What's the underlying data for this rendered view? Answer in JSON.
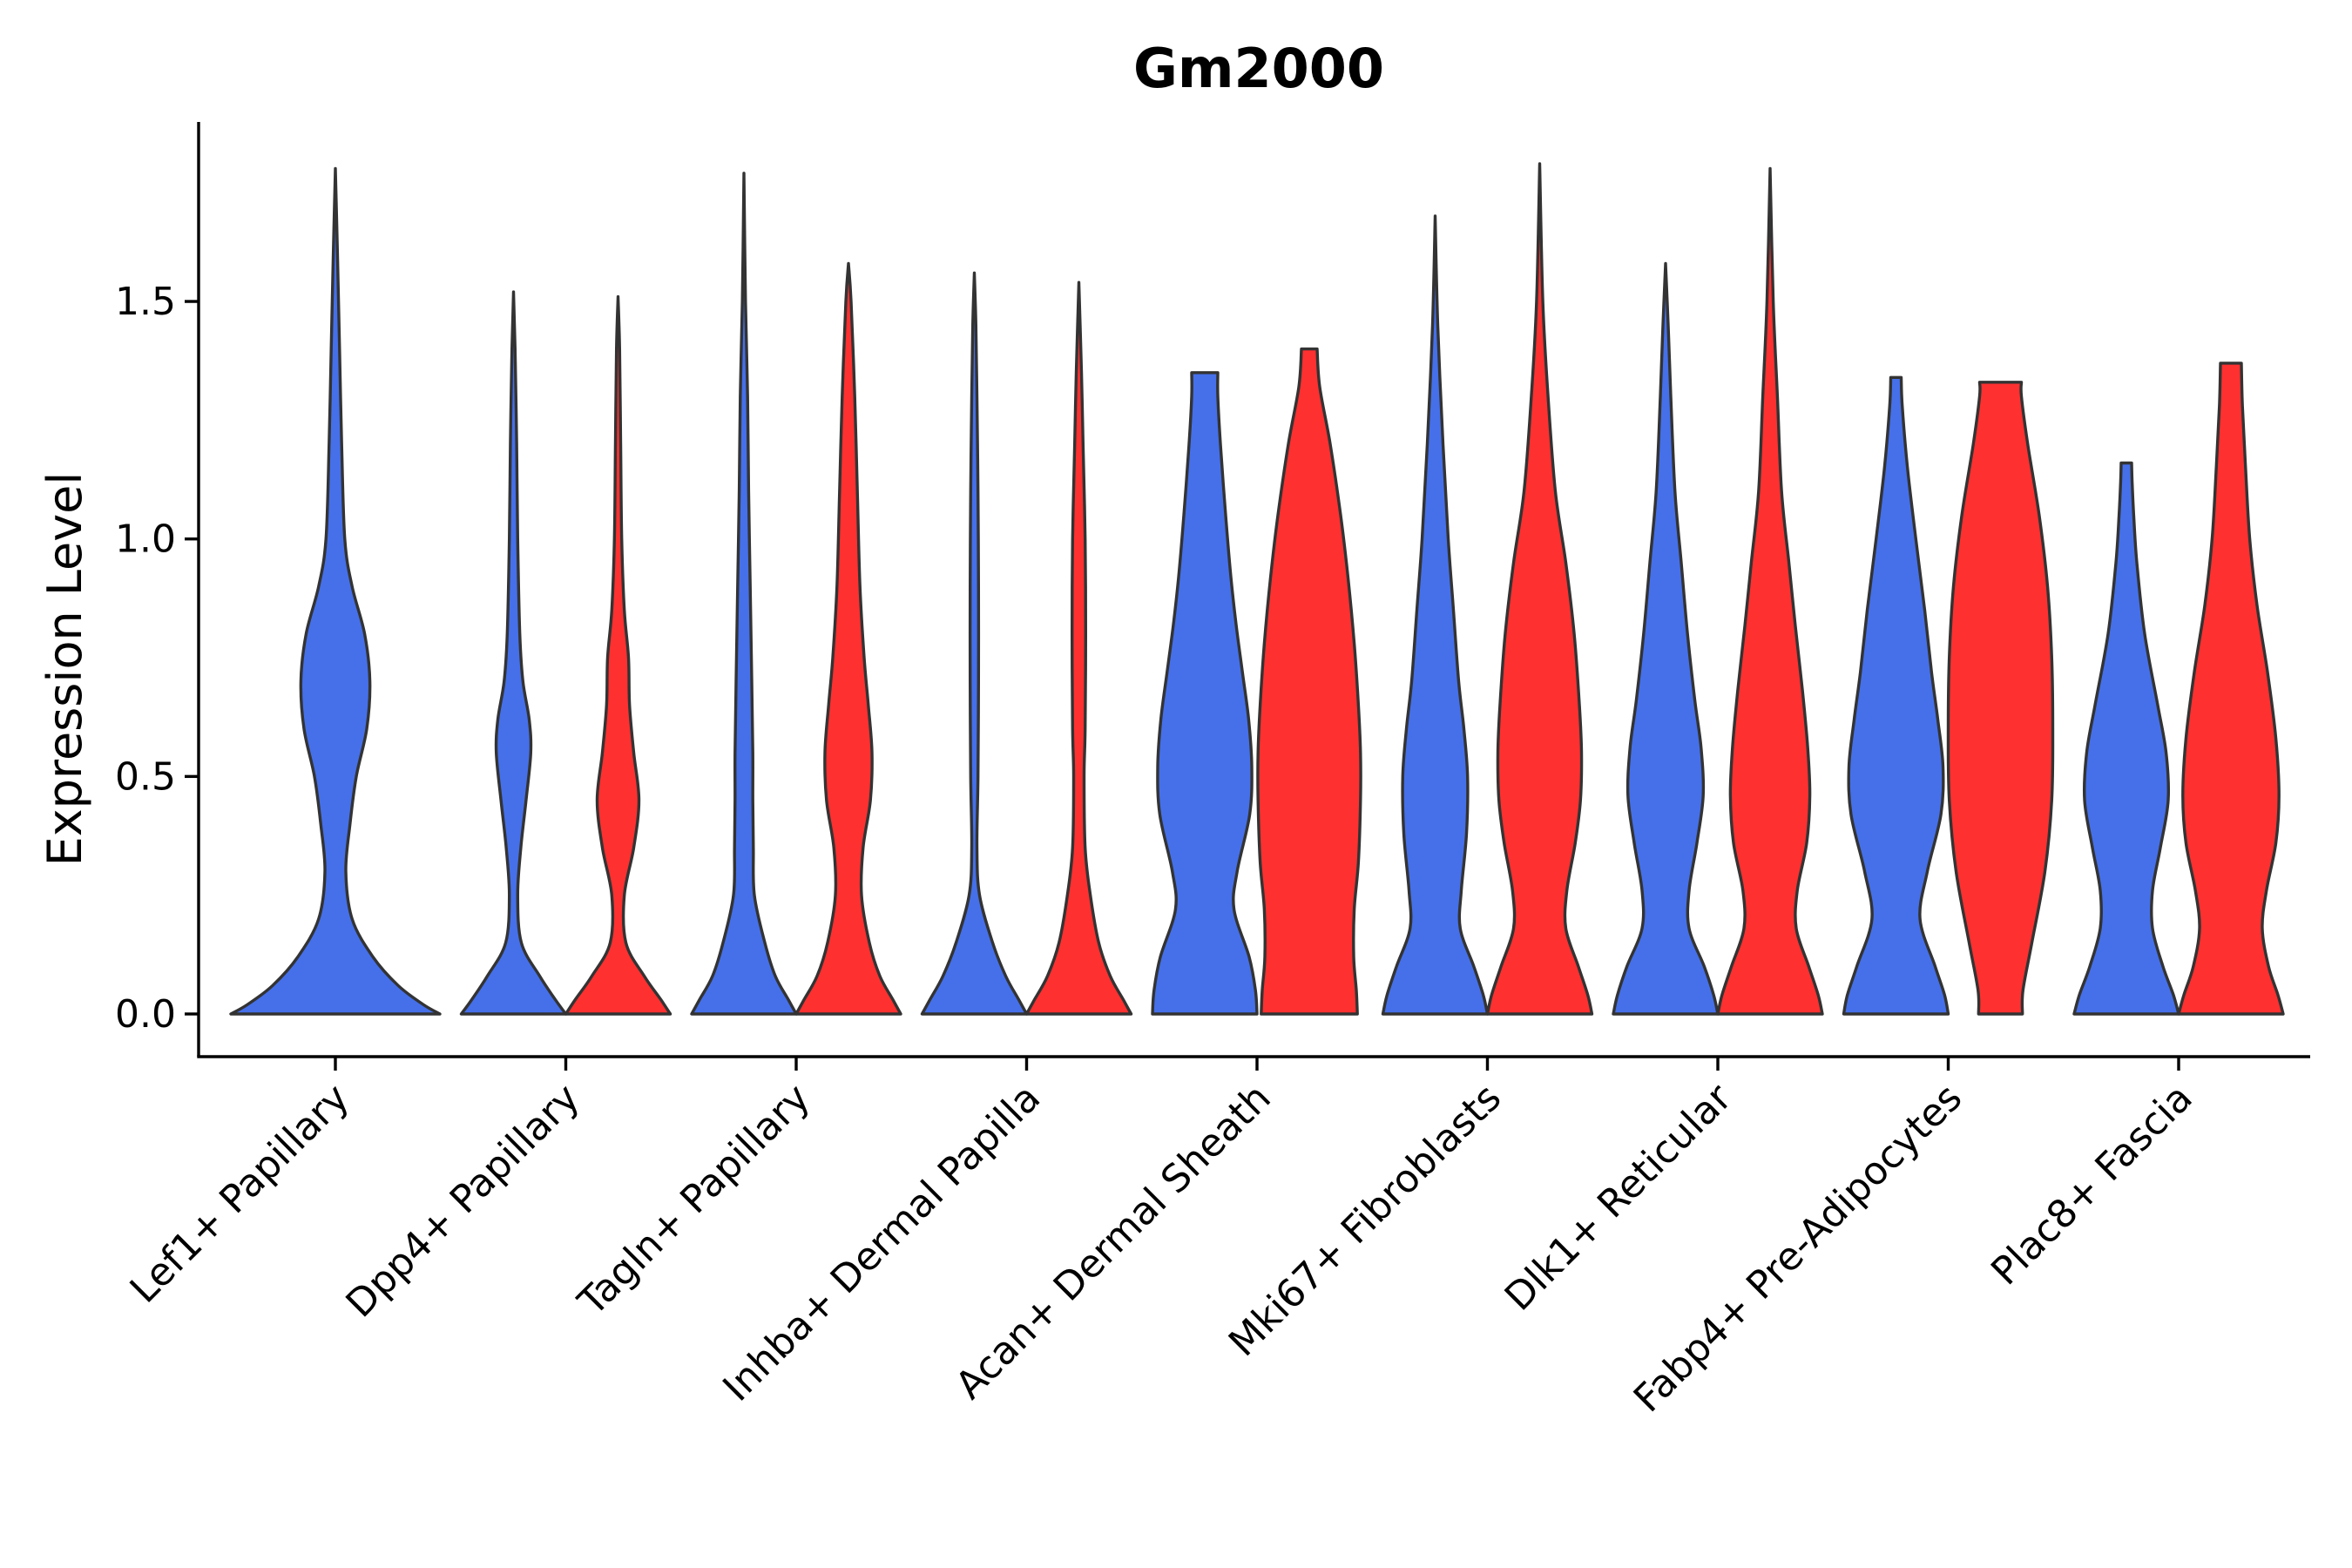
{
  "chart_data": {
    "type": "violin",
    "title": "Gm2000",
    "xlabel": "",
    "ylabel": "Expression Level",
    "ylim": [
      -0.09,
      1.88
    ],
    "yticks": [
      0.0,
      0.5,
      1.0,
      1.5
    ],
    "ytick_labels": [
      "0.0",
      "0.5",
      "1.0",
      "1.5"
    ],
    "split_colors": [
      "#4570ea",
      "#ff3030"
    ],
    "categories": [
      "Lef1+ Papillary",
      "Dpp4+ Papillary",
      "Tagln+ Papillary",
      "Inhba+ Dermal Papilla",
      "Acan+ Dermal Sheath",
      "Mki67+ Fibroblasts",
      "Dlk1+ Reticular",
      "Fabp4+ Pre-Adipocytes",
      "Plac8+ Fascia"
    ],
    "violins": [
      {
        "category": "Lef1+ Papillary",
        "group": "blue",
        "max": 1.78,
        "profile": [
          [
            0.0,
            1.0
          ],
          [
            0.02,
            0.84
          ],
          [
            0.06,
            0.6
          ],
          [
            0.12,
            0.36
          ],
          [
            0.2,
            0.16
          ],
          [
            0.3,
            0.1
          ],
          [
            0.4,
            0.14
          ],
          [
            0.5,
            0.2
          ],
          [
            0.6,
            0.3
          ],
          [
            0.7,
            0.33
          ],
          [
            0.8,
            0.28
          ],
          [
            0.9,
            0.16
          ],
          [
            1.0,
            0.09
          ],
          [
            1.2,
            0.06
          ],
          [
            1.4,
            0.04
          ],
          [
            1.6,
            0.02
          ],
          [
            1.78,
            0.0
          ]
        ]
      },
      {
        "category": "Dpp4+ Papillary",
        "group": "blue",
        "max": 1.52,
        "profile": [
          [
            0.0,
            1.0
          ],
          [
            0.03,
            0.8
          ],
          [
            0.08,
            0.5
          ],
          [
            0.15,
            0.15
          ],
          [
            0.25,
            0.08
          ],
          [
            0.35,
            0.14
          ],
          [
            0.45,
            0.24
          ],
          [
            0.55,
            0.33
          ],
          [
            0.62,
            0.3
          ],
          [
            0.7,
            0.18
          ],
          [
            0.8,
            0.12
          ],
          [
            1.0,
            0.08
          ],
          [
            1.2,
            0.06
          ],
          [
            1.4,
            0.03
          ],
          [
            1.52,
            0.0
          ]
        ]
      },
      {
        "category": "Dpp4+ Papillary",
        "group": "red",
        "max": 1.51,
        "profile": [
          [
            0.0,
            1.0
          ],
          [
            0.03,
            0.82
          ],
          [
            0.08,
            0.5
          ],
          [
            0.15,
            0.15
          ],
          [
            0.25,
            0.12
          ],
          [
            0.35,
            0.3
          ],
          [
            0.45,
            0.4
          ],
          [
            0.55,
            0.3
          ],
          [
            0.65,
            0.22
          ],
          [
            0.75,
            0.2
          ],
          [
            0.85,
            0.12
          ],
          [
            1.0,
            0.07
          ],
          [
            1.2,
            0.05
          ],
          [
            1.4,
            0.03
          ],
          [
            1.51,
            0.0
          ]
        ]
      },
      {
        "category": "Tagln+ Papillary",
        "group": "blue",
        "max": 1.77,
        "profile": [
          [
            0.0,
            1.0
          ],
          [
            0.03,
            0.85
          ],
          [
            0.08,
            0.6
          ],
          [
            0.15,
            0.4
          ],
          [
            0.25,
            0.2
          ],
          [
            0.35,
            0.18
          ],
          [
            0.45,
            0.17
          ],
          [
            0.55,
            0.17
          ],
          [
            0.7,
            0.15
          ],
          [
            0.9,
            0.12
          ],
          [
            1.1,
            0.09
          ],
          [
            1.3,
            0.07
          ],
          [
            1.5,
            0.03
          ],
          [
            1.77,
            0.0
          ]
        ]
      },
      {
        "category": "Tagln+ Papillary",
        "group": "red",
        "max": 1.58,
        "profile": [
          [
            0.0,
            1.0
          ],
          [
            0.03,
            0.85
          ],
          [
            0.08,
            0.6
          ],
          [
            0.15,
            0.4
          ],
          [
            0.25,
            0.25
          ],
          [
            0.35,
            0.28
          ],
          [
            0.45,
            0.42
          ],
          [
            0.55,
            0.45
          ],
          [
            0.65,
            0.38
          ],
          [
            0.75,
            0.3
          ],
          [
            0.9,
            0.22
          ],
          [
            1.1,
            0.17
          ],
          [
            1.3,
            0.12
          ],
          [
            1.5,
            0.05
          ],
          [
            1.58,
            0.0
          ]
        ]
      },
      {
        "category": "Inhba+ Dermal Papilla",
        "group": "blue",
        "max": 1.56,
        "profile": [
          [
            0.0,
            1.0
          ],
          [
            0.03,
            0.85
          ],
          [
            0.08,
            0.6
          ],
          [
            0.15,
            0.35
          ],
          [
            0.25,
            0.1
          ],
          [
            0.35,
            0.05
          ],
          [
            0.5,
            0.07
          ],
          [
            0.7,
            0.08
          ],
          [
            0.9,
            0.08
          ],
          [
            1.1,
            0.07
          ],
          [
            1.3,
            0.05
          ],
          [
            1.45,
            0.03
          ],
          [
            1.56,
            0.0
          ]
        ]
      },
      {
        "category": "Inhba+ Dermal Papilla",
        "group": "red",
        "max": 1.54,
        "profile": [
          [
            0.0,
            1.0
          ],
          [
            0.03,
            0.85
          ],
          [
            0.08,
            0.6
          ],
          [
            0.15,
            0.38
          ],
          [
            0.25,
            0.22
          ],
          [
            0.35,
            0.12
          ],
          [
            0.5,
            0.1
          ],
          [
            0.6,
            0.12
          ],
          [
            0.8,
            0.13
          ],
          [
            1.0,
            0.12
          ],
          [
            1.2,
            0.08
          ],
          [
            1.35,
            0.05
          ],
          [
            1.54,
            0.0
          ]
        ]
      },
      {
        "category": "Acan+ Dermal Sheath",
        "group": "blue",
        "max": 1.35,
        "profile": [
          [
            0.0,
            1.0
          ],
          [
            0.05,
            0.97
          ],
          [
            0.12,
            0.85
          ],
          [
            0.22,
            0.56
          ],
          [
            0.3,
            0.62
          ],
          [
            0.42,
            0.86
          ],
          [
            0.52,
            0.9
          ],
          [
            0.62,
            0.84
          ],
          [
            0.72,
            0.72
          ],
          [
            0.82,
            0.6
          ],
          [
            0.92,
            0.5
          ],
          [
            1.05,
            0.4
          ],
          [
            1.2,
            0.3
          ],
          [
            1.3,
            0.25
          ],
          [
            1.35,
            0.25
          ]
        ]
      },
      {
        "category": "Acan+ Dermal Sheath",
        "group": "red",
        "max": 1.4,
        "profile": [
          [
            0.0,
            0.92
          ],
          [
            0.05,
            0.9
          ],
          [
            0.12,
            0.85
          ],
          [
            0.22,
            0.86
          ],
          [
            0.32,
            0.94
          ],
          [
            0.45,
            0.98
          ],
          [
            0.55,
            0.98
          ],
          [
            0.65,
            0.94
          ],
          [
            0.78,
            0.86
          ],
          [
            0.92,
            0.74
          ],
          [
            1.05,
            0.6
          ],
          [
            1.2,
            0.4
          ],
          [
            1.32,
            0.2
          ],
          [
            1.4,
            0.15
          ]
        ]
      },
      {
        "category": "Mki67+ Fibroblasts",
        "group": "blue",
        "max": 1.68,
        "profile": [
          [
            0.0,
            1.0
          ],
          [
            0.04,
            0.92
          ],
          [
            0.1,
            0.74
          ],
          [
            0.18,
            0.48
          ],
          [
            0.26,
            0.5
          ],
          [
            0.38,
            0.6
          ],
          [
            0.5,
            0.62
          ],
          [
            0.6,
            0.55
          ],
          [
            0.7,
            0.45
          ],
          [
            0.85,
            0.35
          ],
          [
            1.0,
            0.25
          ],
          [
            1.2,
            0.15
          ],
          [
            1.45,
            0.05
          ],
          [
            1.68,
            0.0
          ]
        ]
      },
      {
        "category": "Mki67+ Fibroblasts",
        "group": "red",
        "max": 1.79,
        "profile": [
          [
            0.0,
            1.0
          ],
          [
            0.04,
            0.92
          ],
          [
            0.1,
            0.74
          ],
          [
            0.18,
            0.5
          ],
          [
            0.26,
            0.52
          ],
          [
            0.36,
            0.68
          ],
          [
            0.45,
            0.78
          ],
          [
            0.55,
            0.8
          ],
          [
            0.65,
            0.76
          ],
          [
            0.8,
            0.66
          ],
          [
            0.95,
            0.5
          ],
          [
            1.1,
            0.3
          ],
          [
            1.3,
            0.16
          ],
          [
            1.5,
            0.06
          ],
          [
            1.79,
            0.0
          ]
        ]
      },
      {
        "category": "Dlk1+ Reticular",
        "group": "blue",
        "max": 1.58,
        "profile": [
          [
            0.0,
            1.0
          ],
          [
            0.04,
            0.92
          ],
          [
            0.1,
            0.74
          ],
          [
            0.18,
            0.45
          ],
          [
            0.26,
            0.45
          ],
          [
            0.36,
            0.6
          ],
          [
            0.46,
            0.72
          ],
          [
            0.56,
            0.68
          ],
          [
            0.66,
            0.56
          ],
          [
            0.8,
            0.42
          ],
          [
            0.95,
            0.3
          ],
          [
            1.1,
            0.18
          ],
          [
            1.3,
            0.1
          ],
          [
            1.45,
            0.05
          ],
          [
            1.58,
            0.0
          ]
        ]
      },
      {
        "category": "Dlk1+ Reticular",
        "group": "red",
        "max": 1.78,
        "profile": [
          [
            0.0,
            1.0
          ],
          [
            0.04,
            0.92
          ],
          [
            0.1,
            0.74
          ],
          [
            0.18,
            0.5
          ],
          [
            0.26,
            0.52
          ],
          [
            0.36,
            0.7
          ],
          [
            0.46,
            0.76
          ],
          [
            0.56,
            0.72
          ],
          [
            0.68,
            0.62
          ],
          [
            0.82,
            0.48
          ],
          [
            0.95,
            0.36
          ],
          [
            1.1,
            0.22
          ],
          [
            1.3,
            0.14
          ],
          [
            1.5,
            0.06
          ],
          [
            1.78,
            0.0
          ]
        ]
      },
      {
        "category": "Fabp4+ Pre-Adipocytes",
        "group": "blue",
        "max": 1.34,
        "profile": [
          [
            0.0,
            1.0
          ],
          [
            0.04,
            0.93
          ],
          [
            0.1,
            0.75
          ],
          [
            0.2,
            0.46
          ],
          [
            0.3,
            0.6
          ],
          [
            0.42,
            0.86
          ],
          [
            0.52,
            0.9
          ],
          [
            0.62,
            0.8
          ],
          [
            0.72,
            0.68
          ],
          [
            0.85,
            0.55
          ],
          [
            1.0,
            0.38
          ],
          [
            1.15,
            0.22
          ],
          [
            1.28,
            0.12
          ],
          [
            1.34,
            0.1
          ]
        ]
      },
      {
        "category": "Fabp4+ Pre-Adipocytes",
        "group": "red",
        "max": 1.33,
        "profile": [
          [
            0.0,
            0.42
          ],
          [
            0.05,
            0.43
          ],
          [
            0.15,
            0.6
          ],
          [
            0.3,
            0.85
          ],
          [
            0.45,
            0.98
          ],
          [
            0.6,
            1.0
          ],
          [
            0.75,
            0.98
          ],
          [
            0.9,
            0.9
          ],
          [
            1.05,
            0.74
          ],
          [
            1.2,
            0.52
          ],
          [
            1.3,
            0.4
          ],
          [
            1.33,
            0.4
          ]
        ]
      },
      {
        "category": "Plac8+ Fascia",
        "group": "blue",
        "max": 1.16,
        "profile": [
          [
            0.0,
            1.0
          ],
          [
            0.04,
            0.9
          ],
          [
            0.1,
            0.7
          ],
          [
            0.18,
            0.5
          ],
          [
            0.26,
            0.5
          ],
          [
            0.35,
            0.65
          ],
          [
            0.45,
            0.8
          ],
          [
            0.55,
            0.76
          ],
          [
            0.65,
            0.6
          ],
          [
            0.8,
            0.35
          ],
          [
            0.95,
            0.2
          ],
          [
            1.05,
            0.14
          ],
          [
            1.12,
            0.11
          ],
          [
            1.16,
            0.1
          ]
        ]
      },
      {
        "category": "Plac8+ Fascia",
        "group": "red",
        "max": 1.37,
        "profile": [
          [
            0.0,
            1.0
          ],
          [
            0.04,
            0.9
          ],
          [
            0.1,
            0.72
          ],
          [
            0.18,
            0.6
          ],
          [
            0.26,
            0.68
          ],
          [
            0.36,
            0.86
          ],
          [
            0.46,
            0.92
          ],
          [
            0.58,
            0.86
          ],
          [
            0.72,
            0.7
          ],
          [
            0.86,
            0.5
          ],
          [
            1.0,
            0.36
          ],
          [
            1.15,
            0.28
          ],
          [
            1.28,
            0.22
          ],
          [
            1.37,
            0.2
          ]
        ]
      }
    ]
  }
}
